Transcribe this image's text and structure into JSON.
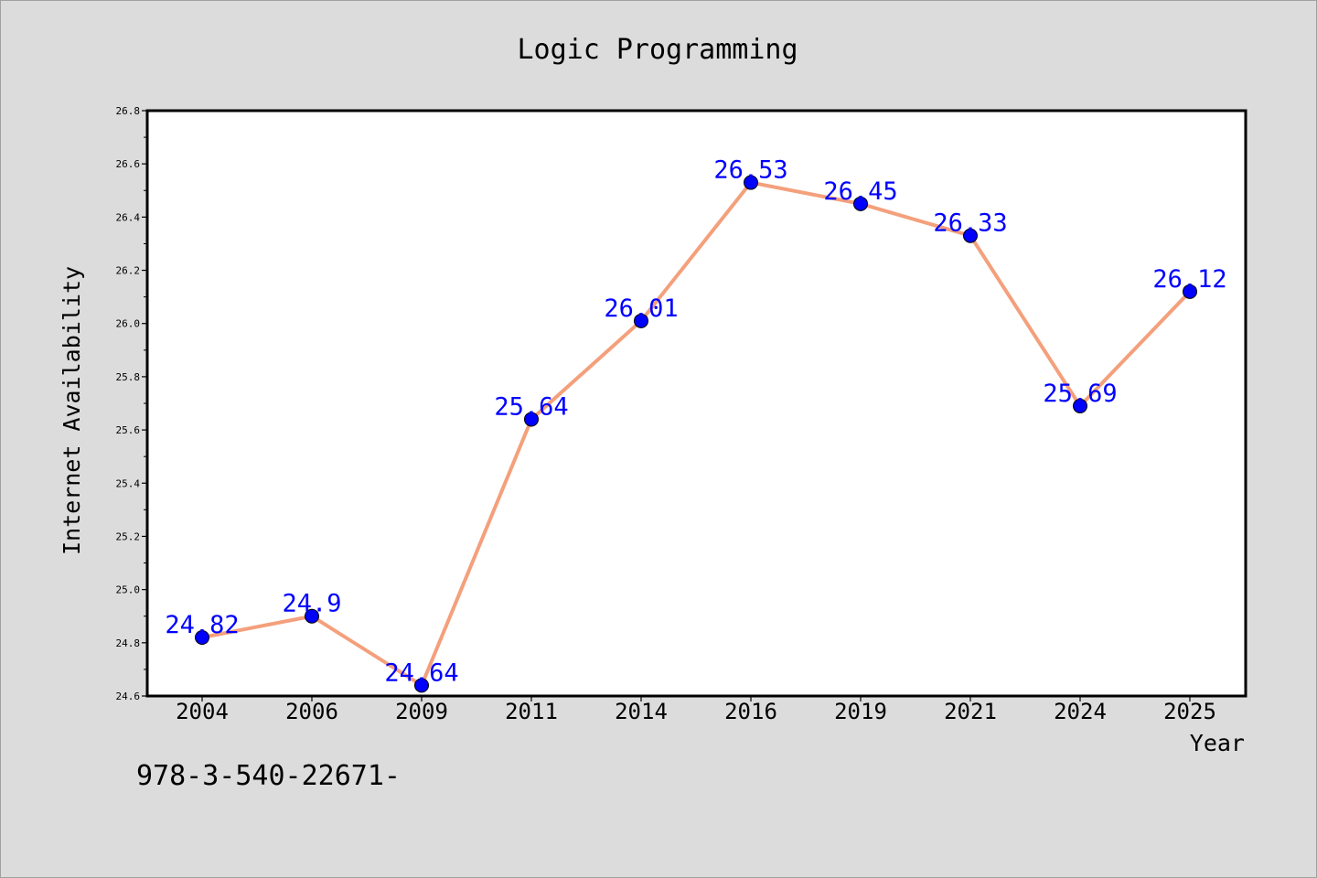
{
  "chart_data": {
    "type": "line",
    "title": "Logic Programming",
    "xlabel": "Year",
    "ylabel": "Internet Availability",
    "categories": [
      "2004",
      "2006",
      "2009",
      "2011",
      "2014",
      "2016",
      "2019",
      "2021",
      "2024",
      "2025"
    ],
    "series": [
      {
        "values": [
          24.82,
          24.9,
          24.64,
          25.64,
          26.01,
          26.53,
          26.45,
          26.33,
          25.69,
          26.12
        ],
        "labels": [
          "24.82",
          "24.9",
          "24.64",
          "25.64",
          "26.01",
          "26.53",
          "26.45",
          "26.33",
          "25.69",
          "26.12"
        ]
      }
    ],
    "ylim": [
      24.6,
      26.8
    ],
    "yticks": [
      "24.6",
      "24.8",
      "25.0",
      "25.2",
      "25.4",
      "25.6",
      "25.8",
      "26.0",
      "26.2",
      "26.4",
      "26.6",
      "26.8"
    ],
    "grid": false,
    "line_color": "#f4a07c",
    "marker_color": "#0000ff",
    "label_color": "#0000ff",
    "background": "#dcdcdc",
    "plot_background": "#ffffff"
  },
  "footer": {
    "text": "978-3-540-22671-"
  }
}
